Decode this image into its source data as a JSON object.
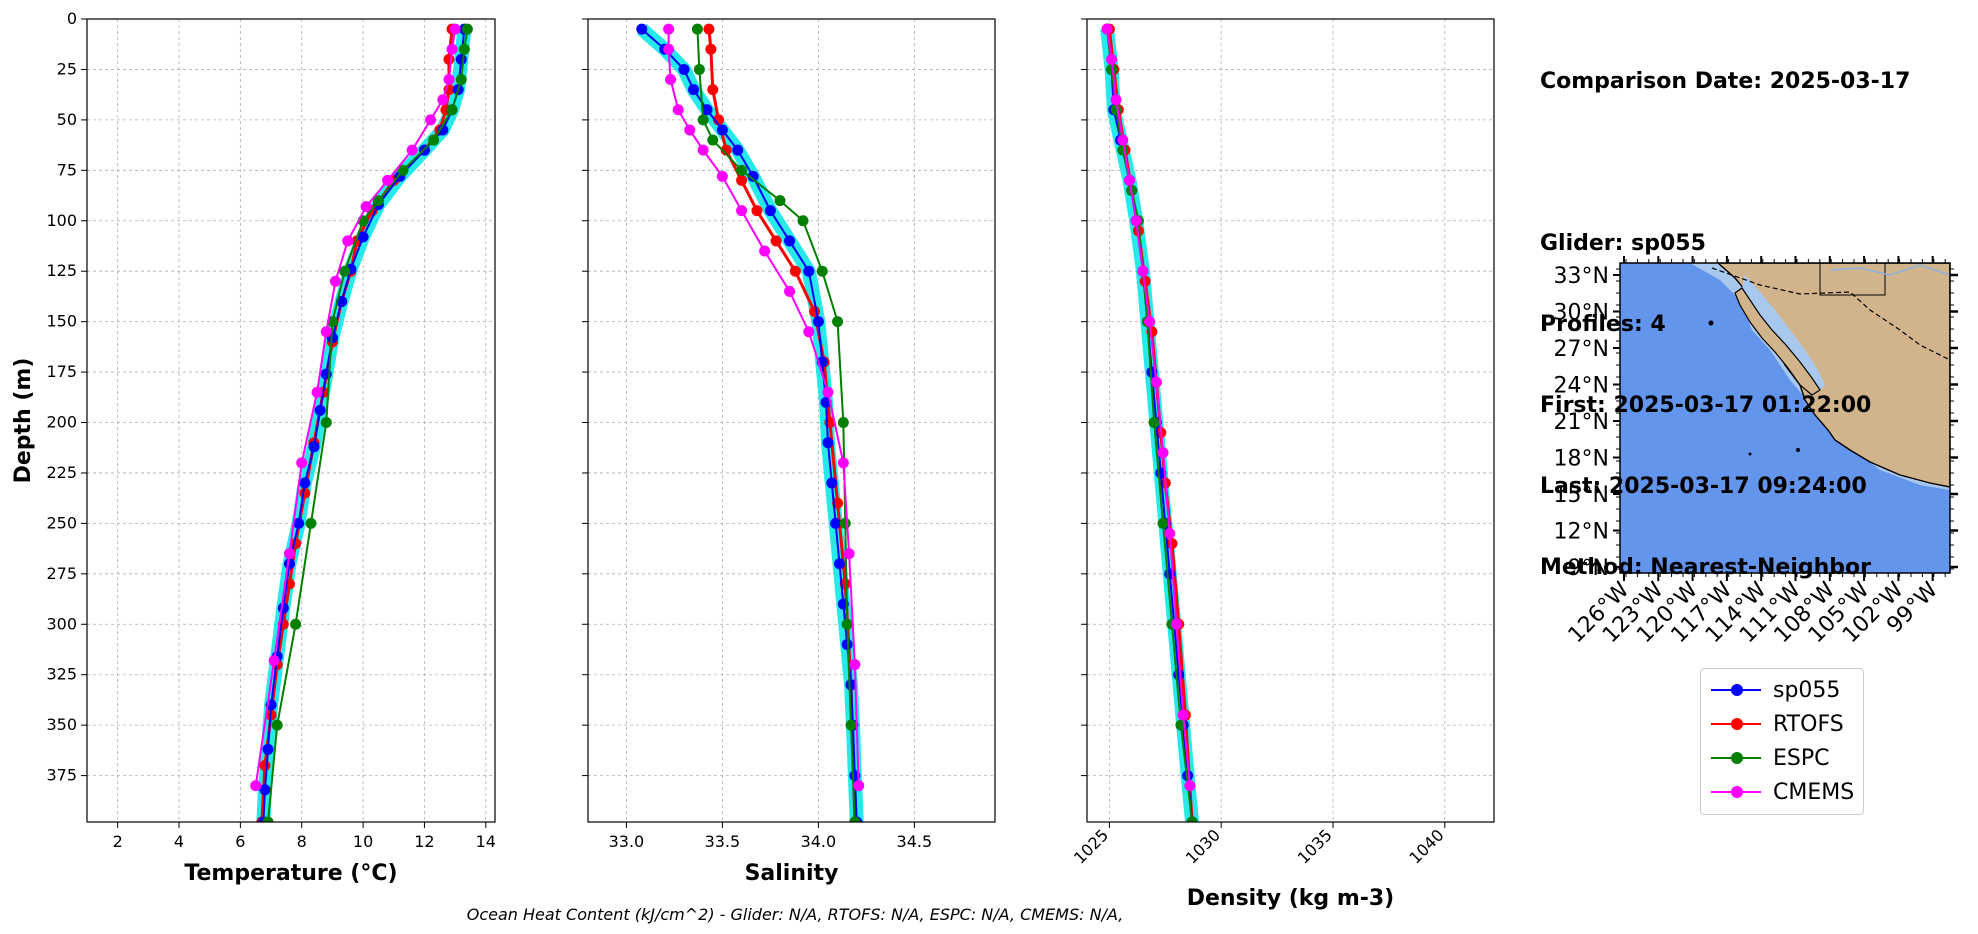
{
  "info": {
    "comparison_date": "Comparison Date: 2025-03-17",
    "glider": "Glider: sp055",
    "profiles": "Profiles: 4",
    "first": "First: 2025-03-17 01:22:00",
    "last": "Last: 2025-03-17 09:24:00",
    "method": "Method: Nearest-Neighbor"
  },
  "footer": "Ocean Heat Content (kJ/cm^2) - Glider: N/A,  RTOFS: N/A,  ESPC: N/A,  CMEMS: N/A,",
  "colors": {
    "sp055": "#0000ff",
    "RTOFS": "#ff0000",
    "ESPC": "#008000",
    "CMEMS": "#ff00ff",
    "glider_spread": "#00e5e5",
    "ocean": "#6495ed",
    "land": "#d2b48c",
    "shelf": "#a8c8ee",
    "grid": "#b0b0b0"
  },
  "legend": [
    "sp055",
    "RTOFS",
    "ESPC",
    "CMEMS"
  ],
  "chart_data": [
    {
      "type": "line",
      "xlabel": "Temperature (°C)",
      "ylabel": "Depth (m)",
      "xlim": [
        1,
        14.3
      ],
      "ylim": [
        398,
        0
      ],
      "xticks": [
        2,
        4,
        6,
        8,
        10,
        12,
        14
      ],
      "yticks": [
        0,
        25,
        50,
        75,
        100,
        125,
        150,
        175,
        200,
        225,
        250,
        275,
        300,
        325,
        350,
        375
      ],
      "grid": true,
      "series": [
        {
          "name": "sp055",
          "x": [
            13.3,
            13.2,
            13.1,
            12.9,
            12.6,
            12.0,
            11.2,
            10.5,
            10.0,
            9.6,
            9.3,
            9.0,
            8.8,
            8.6,
            8.4,
            8.1,
            7.9,
            7.6,
            7.4,
            7.2,
            7.0,
            6.9,
            6.8,
            6.75
          ],
          "y": [
            5,
            20,
            35,
            45,
            55,
            65,
            78,
            92,
            108,
            124,
            140,
            158,
            176,
            194,
            212,
            230,
            250,
            270,
            292,
            316,
            340,
            362,
            382,
            398
          ]
        },
        {
          "name": "RTOFS",
          "x": [
            12.9,
            12.8,
            12.8,
            12.7,
            12.5,
            12.0,
            11.0,
            10.3,
            9.8,
            9.6,
            9.3,
            9.0,
            8.7,
            8.4,
            8.1,
            7.8,
            7.6,
            7.4,
            7.2,
            7.0,
            6.8,
            6.7
          ],
          "y": [
            5,
            20,
            35,
            45,
            55,
            65,
            80,
            95,
            110,
            125,
            140,
            160,
            185,
            210,
            235,
            260,
            280,
            300,
            320,
            345,
            370,
            398
          ]
        },
        {
          "name": "ESPC",
          "x": [
            13.4,
            13.3,
            13.2,
            12.9,
            12.3,
            11.3,
            10.5,
            10.0,
            9.4,
            9.0,
            8.8,
            8.3,
            7.8,
            7.2,
            6.9
          ],
          "y": [
            5,
            15,
            30,
            45,
            60,
            75,
            90,
            100,
            125,
            150,
            200,
            250,
            300,
            350,
            398
          ]
        },
        {
          "name": "CMEMS",
          "x": [
            13.0,
            12.9,
            12.8,
            12.6,
            12.2,
            11.6,
            10.8,
            10.1,
            9.5,
            9.1,
            8.8,
            8.5,
            8.0,
            7.6,
            7.1,
            6.5
          ],
          "y": [
            5,
            15,
            30,
            40,
            50,
            65,
            80,
            93,
            110,
            130,
            155,
            185,
            220,
            265,
            318,
            380
          ]
        }
      ]
    },
    {
      "type": "line",
      "xlabel": "Salinity",
      "xlim": [
        32.8,
        34.92
      ],
      "ylim": [
        398,
        0
      ],
      "xticks": [
        33.0,
        33.5,
        34.0,
        34.5
      ],
      "grid": true,
      "series": [
        {
          "name": "sp055",
          "x": [
            33.08,
            33.2,
            33.3,
            33.35,
            33.42,
            33.5,
            33.58,
            33.66,
            33.75,
            33.85,
            33.95,
            34.0,
            34.02,
            34.04,
            34.05,
            34.07,
            34.09,
            34.11,
            34.13,
            34.15,
            34.17,
            34.18,
            34.19,
            34.2
          ],
          "y": [
            5,
            15,
            25,
            35,
            45,
            55,
            65,
            78,
            95,
            110,
            125,
            150,
            170,
            190,
            210,
            230,
            250,
            270,
            290,
            310,
            330,
            350,
            375,
            398
          ]
        },
        {
          "name": "RTOFS",
          "x": [
            33.43,
            33.44,
            33.45,
            33.48,
            33.52,
            33.6,
            33.68,
            33.78,
            33.88,
            33.98,
            34.03,
            34.06,
            34.1,
            34.14,
            34.17,
            34.19
          ],
          "y": [
            5,
            15,
            35,
            50,
            65,
            80,
            95,
            110,
            125,
            145,
            170,
            200,
            240,
            280,
            330,
            398
          ]
        },
        {
          "name": "ESPC",
          "x": [
            33.37,
            33.38,
            33.4,
            33.45,
            33.6,
            33.8,
            33.92,
            34.02,
            34.1,
            34.13,
            34.14,
            34.15,
            34.17,
            34.19
          ],
          "y": [
            5,
            25,
            50,
            60,
            75,
            90,
            100,
            125,
            150,
            200,
            250,
            300,
            350,
            398
          ]
        },
        {
          "name": "CMEMS",
          "x": [
            33.22,
            33.22,
            33.23,
            33.27,
            33.33,
            33.4,
            33.5,
            33.6,
            33.72,
            33.85,
            33.95,
            34.05,
            34.13,
            34.16,
            34.19,
            34.21
          ],
          "y": [
            5,
            15,
            30,
            45,
            55,
            65,
            78,
            95,
            115,
            135,
            155,
            185,
            220,
            265,
            320,
            380
          ]
        }
      ]
    },
    {
      "type": "line",
      "xlabel": "Density (kg m-3)",
      "xlim": [
        1024.0,
        1042.2
      ],
      "ylim": [
        398,
        0
      ],
      "xticks": [
        1025,
        1030,
        1035,
        1040
      ],
      "grid": true,
      "series": [
        {
          "name": "sp055",
          "x": [
            1024.9,
            1025.1,
            1025.2,
            1025.5,
            1025.9,
            1026.2,
            1026.5,
            1026.7,
            1026.9,
            1027.1,
            1027.3,
            1027.5,
            1027.7,
            1027.9,
            1028.1,
            1028.3,
            1028.5,
            1028.7
          ],
          "y": [
            5,
            25,
            45,
            60,
            80,
            100,
            125,
            150,
            175,
            200,
            225,
            250,
            275,
            300,
            325,
            350,
            375,
            398
          ]
        },
        {
          "name": "RTOFS",
          "x": [
            1025.0,
            1025.2,
            1025.4,
            1025.7,
            1026.0,
            1026.3,
            1026.6,
            1026.9,
            1027.1,
            1027.3,
            1027.5,
            1027.8,
            1028.1,
            1028.4,
            1028.7
          ],
          "y": [
            5,
            25,
            45,
            65,
            85,
            105,
            130,
            155,
            180,
            205,
            230,
            260,
            300,
            345,
            398
          ]
        },
        {
          "name": "ESPC",
          "x": [
            1024.9,
            1025.1,
            1025.3,
            1025.6,
            1026.0,
            1026.3,
            1026.7,
            1027.0,
            1027.4,
            1027.8,
            1028.2,
            1028.7
          ],
          "y": [
            5,
            25,
            45,
            65,
            85,
            100,
            150,
            200,
            250,
            300,
            350,
            398
          ]
        },
        {
          "name": "CMEMS",
          "x": [
            1024.9,
            1025.1,
            1025.3,
            1025.6,
            1025.9,
            1026.2,
            1026.5,
            1026.8,
            1027.1,
            1027.4,
            1027.7,
            1028.0,
            1028.3,
            1028.6
          ],
          "y": [
            5,
            20,
            40,
            60,
            80,
            100,
            125,
            150,
            180,
            215,
            255,
            300,
            345,
            380
          ]
        }
      ]
    },
    {
      "type": "map",
      "lat_ticks": [
        "33°N",
        "30°N",
        "27°N",
        "24°N",
        "21°N",
        "18°N",
        "15°N",
        "12°N",
        "9°N"
      ],
      "lon_ticks": [
        "126°W",
        "123°W",
        "120°W",
        "117°W",
        "114°W",
        "111°W",
        "108°W",
        "105°W",
        "102°W",
        "99°W"
      ]
    }
  ]
}
